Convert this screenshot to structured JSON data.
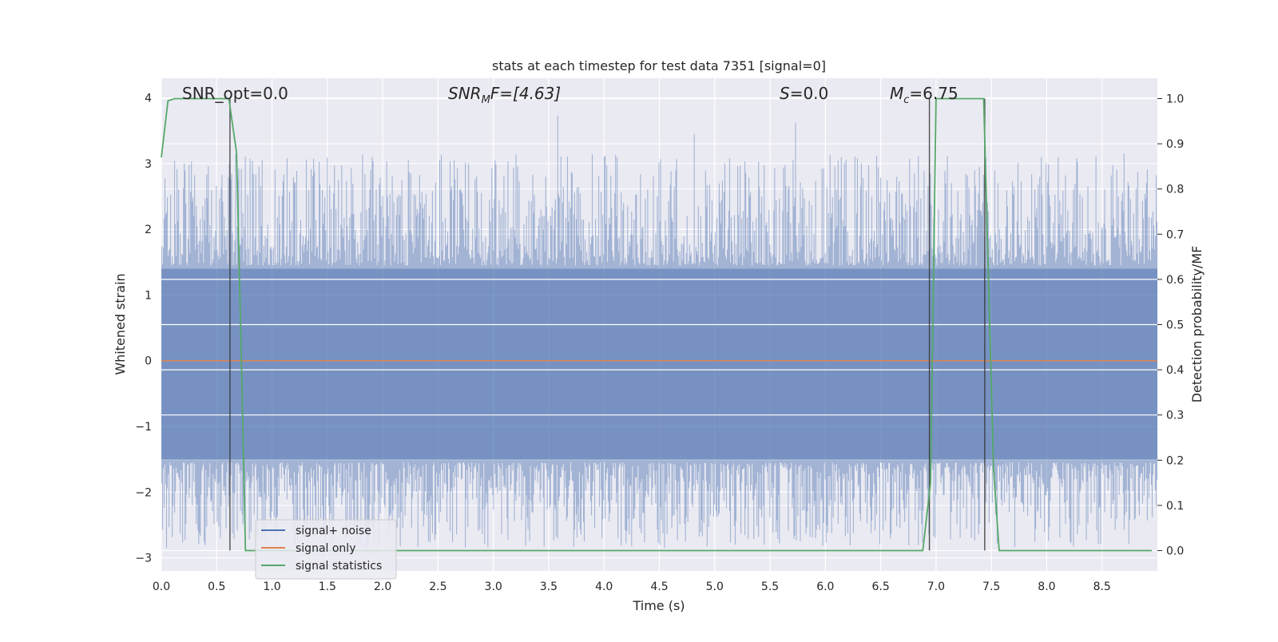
{
  "chart_data": {
    "type": "line",
    "title": "stats at each timestep for test data 7351 [signal=0]",
    "xlabel": "Time (s)",
    "ylabel": "Whitened strain",
    "ylabel_right": "Detection probability/MF",
    "xlim": [
      0.0,
      9.0
    ],
    "ylim": [
      -3.2,
      4.3
    ],
    "ylim_right": [
      -0.045,
      1.045
    ],
    "x_ticks": [
      "0.0",
      "0.5",
      "1.0",
      "1.5",
      "2.0",
      "2.5",
      "3.0",
      "3.5",
      "4.0",
      "4.5",
      "5.0",
      "5.5",
      "6.0",
      "6.5",
      "7.0",
      "7.5",
      "8.0",
      "8.5"
    ],
    "y_ticks": [
      "4",
      "3",
      "2",
      "1",
      "0",
      "−1",
      "−2",
      "−3"
    ],
    "y_ticks_right": [
      "1.0",
      "0.9",
      "0.8",
      "0.7",
      "0.6",
      "0.5",
      "0.4",
      "0.3",
      "0.2",
      "0.1",
      "0.0"
    ],
    "grid": true,
    "legend_position": "lower-left",
    "annotations": {
      "snr_opt": "SNR_opt=0.0",
      "snr_mf_sym": "SNR",
      "snr_mf_sub": "M",
      "snr_mf_rest": "F=[4.63]",
      "s_sym": "S",
      "s_rest": "=0.0",
      "mc_sym": "M",
      "mc_sub": "c",
      "mc_rest": "=6.75"
    },
    "series": [
      {
        "name": "signal+ noise",
        "color": "#4c72b0",
        "kind": "noise",
        "typical_range": [
          -1.5,
          1.4
        ]
      },
      {
        "name": "signal only",
        "color": "#dd8452",
        "values_constant": 0.0
      },
      {
        "name": "signal statistics",
        "color": "#55a868",
        "axis": "right",
        "x": [
          0.0,
          0.06,
          0.12,
          0.61,
          0.68,
          0.73,
          0.76,
          6.88,
          6.95,
          7.0,
          7.43,
          7.52,
          7.57,
          8.95
        ],
        "y": [
          0.87,
          0.995,
          1.0,
          1.0,
          0.88,
          0.35,
          0.0,
          0.0,
          0.15,
          1.0,
          1.0,
          0.18,
          0.0,
          0.0
        ]
      }
    ],
    "vertical_markers_x": [
      0.62,
      6.94,
      7.44
    ]
  }
}
